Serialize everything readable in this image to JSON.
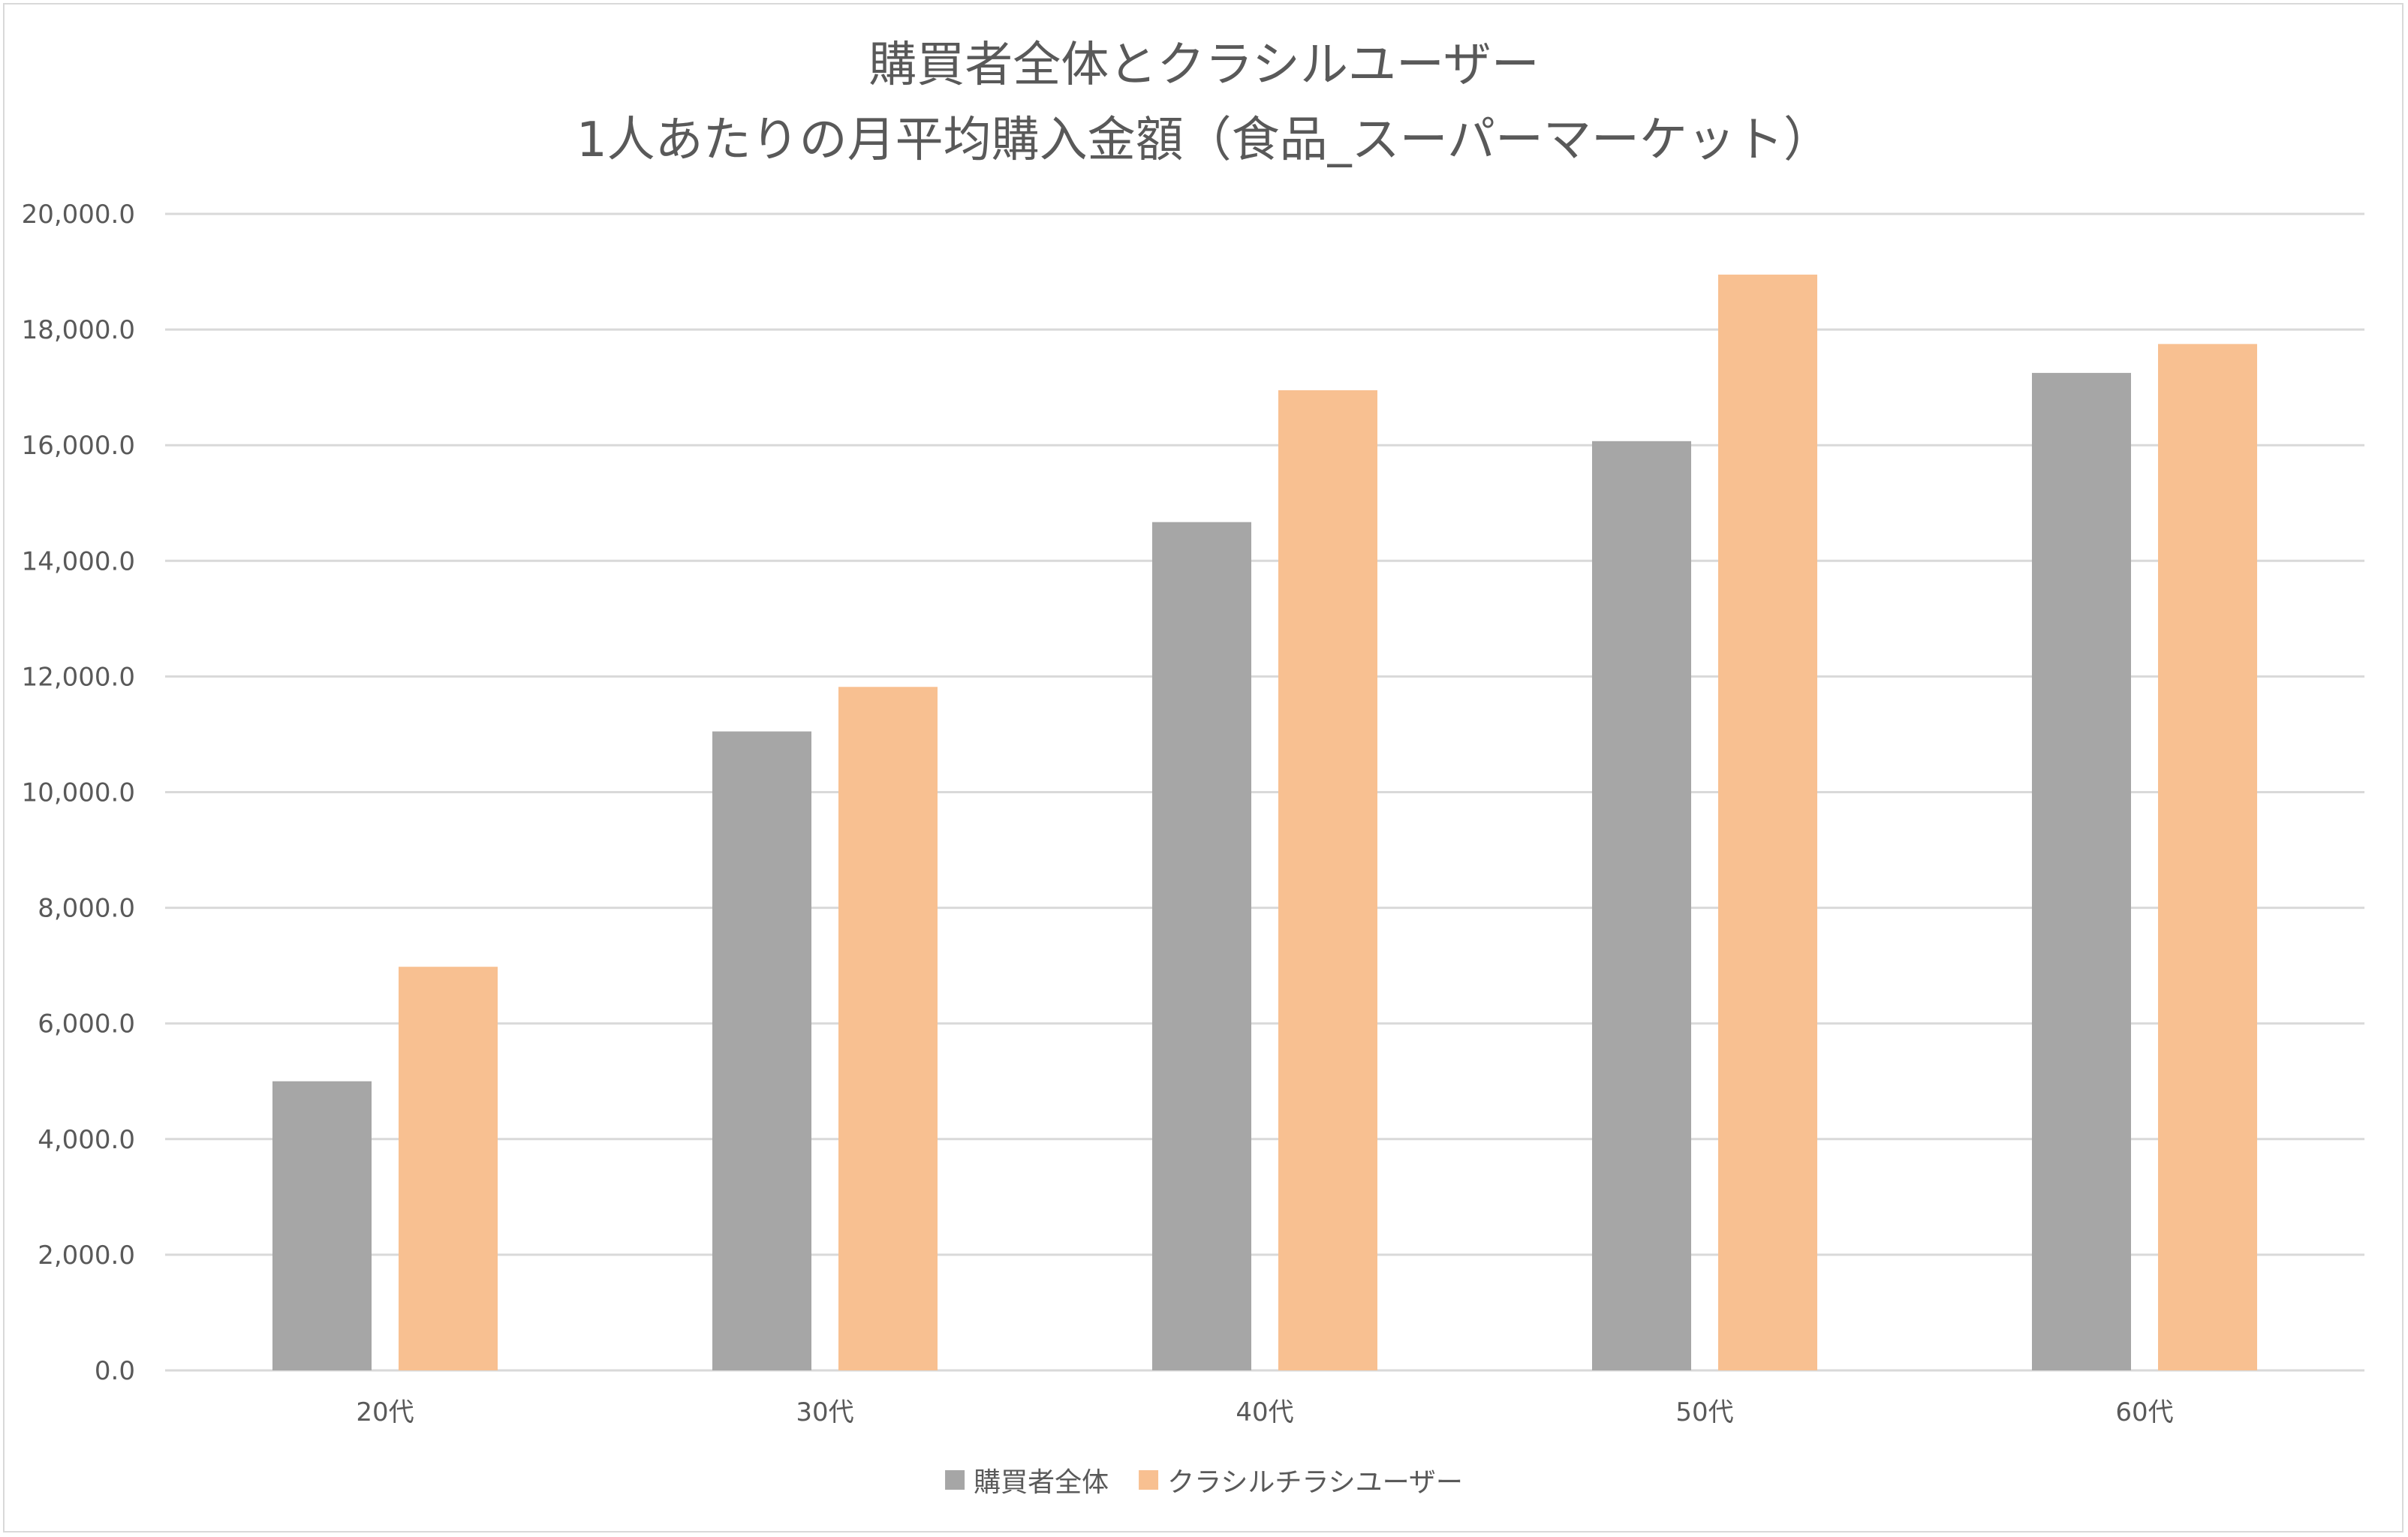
{
  "chart_data": {
    "type": "bar",
    "title_lines": [
      "購買者全体とクラシルユーザー",
      "1人あたりの月平均購入金額（食品_スーパーマーケット）"
    ],
    "categories": [
      "20代",
      "30代",
      "40代",
      "50代",
      "60代"
    ],
    "series": [
      {
        "name": "購買者全体",
        "color": "#a6a6a6",
        "values": [
          5000,
          11050,
          14670,
          16070,
          17250
        ]
      },
      {
        "name": "クラシルチラシユーザー",
        "color": "#f8c091",
        "values": [
          6980,
          11820,
          16950,
          18950,
          17750
        ]
      }
    ],
    "ylim": [
      0,
      20000
    ],
    "y_ticks": [
      0,
      2000,
      4000,
      6000,
      8000,
      10000,
      12000,
      14000,
      16000,
      18000,
      20000
    ],
    "y_tick_labels": [
      "0.0",
      "2,000.0",
      "4,000.0",
      "6,000.0",
      "8,000.0",
      "10,000.0",
      "12,000.0",
      "14,000.0",
      "16,000.0",
      "18,000.0",
      "20,000.0"
    ],
    "xlabel": "",
    "ylabel": "",
    "grid": true,
    "legend_position": "bottom"
  }
}
